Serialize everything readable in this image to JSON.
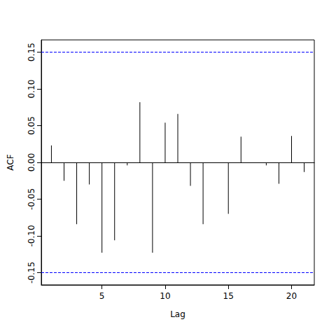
{
  "chart_data": {
    "type": "bar",
    "x_label": "Lag",
    "y_label": "ACF",
    "x": [
      1,
      2,
      3,
      4,
      5,
      6,
      7,
      8,
      9,
      10,
      11,
      12,
      13,
      14,
      15,
      16,
      17,
      18,
      19,
      20,
      21
    ],
    "values": [
      0.023,
      -0.025,
      -0.084,
      -0.03,
      -0.123,
      -0.106,
      -0.004,
      0.082,
      -0.123,
      0.054,
      0.066,
      -0.032,
      -0.084,
      -0.001,
      -0.07,
      0.035,
      0.0,
      -0.004,
      -0.029,
      0.036,
      -0.013
    ],
    "color": "#000000",
    "ci": {
      "values": [
        0.154,
        -0.154
      ],
      "color": "#0000ff",
      "line_style": "dashed"
    },
    "xlim": [
      0.2,
      21.8
    ],
    "xticks": [
      5,
      10,
      15,
      20
    ],
    "ylim": [
      -0.1667,
      0.1667
    ],
    "yticks": [
      {
        "value": -0.15,
        "label": "-0.15"
      },
      {
        "value": -0.1,
        "label": "-0.10"
      },
      {
        "value": -0.05,
        "label": "-0.05"
      },
      {
        "value": 0,
        "label": "0.00"
      },
      {
        "value": 0.05,
        "label": "0.05"
      },
      {
        "value": 0.1,
        "label": "0.10"
      },
      {
        "value": 0.15,
        "label": "0.15"
      }
    ],
    "grid": false
  }
}
